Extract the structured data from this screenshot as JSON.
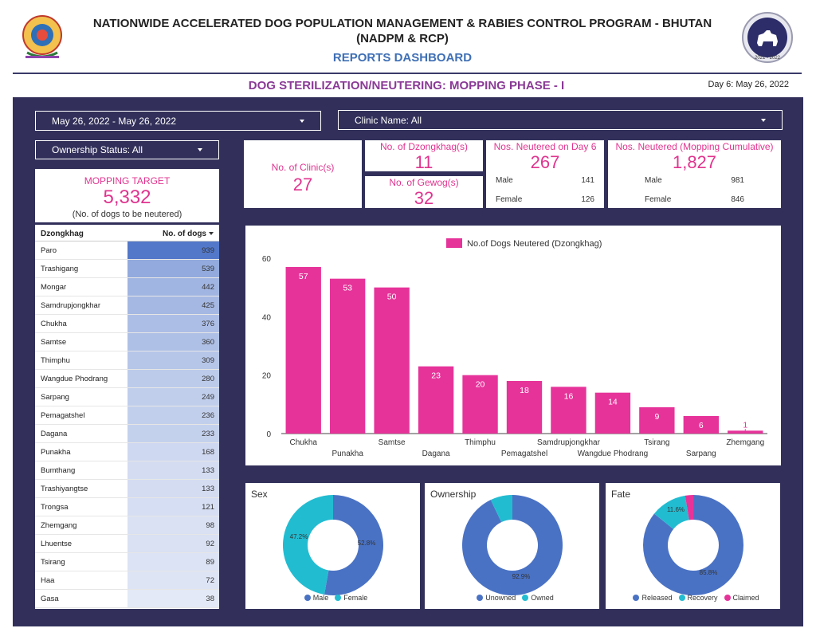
{
  "header": {
    "title_line1": "NATIONWIDE ACCELERATED DOG POPULATION MANAGEMENT & RABIES CONTROL PROGRAM - BHUTAN",
    "title_line2": "(NADPM & RCP)",
    "subtitle": "REPORTS DASHBOARD",
    "section_title": "DOG STERILIZATION/NEUTERING: MOPPING PHASE - I",
    "day_label": "Day 6: May 26, 2022",
    "left_logo": "emblem-of-bhutan-logo",
    "right_logo": "nadpm-dog-logo",
    "right_logo_years": "2021 - 2022"
  },
  "filters": {
    "date_range": "May 26, 2022 - May 26, 2022",
    "clinic": "Clinic Name: All",
    "ownership": "Ownership Status: All"
  },
  "target": {
    "label": "MOPPING TARGET",
    "value": "5,332",
    "note": "(No. of dogs to be neutered)"
  },
  "kpis": {
    "clinics": {
      "label": "No. of Clinic(s)",
      "value": "27"
    },
    "dzongkhags": {
      "label": "No. of Dzongkhag(s)",
      "value": "11"
    },
    "gewogs": {
      "label": "No. of Gewog(s)",
      "value": "32"
    },
    "day6": {
      "label": "Nos. Neutered on Day 6",
      "value": "267",
      "male_label": "Male",
      "male_value": "141",
      "female_label": "Female",
      "female_value": "126"
    },
    "cumulative": {
      "label": "Nos. Neutered (Mopping Cumulative)",
      "value": "1,827",
      "male_label": "Male",
      "male_value": "981",
      "female_label": "Female",
      "female_value": "846"
    }
  },
  "table": {
    "col1": "Dzongkhag",
    "col2": "No. of dogs",
    "max": 939,
    "rows": [
      {
        "name": "Paro",
        "value": 939
      },
      {
        "name": "Trashigang",
        "value": 539
      },
      {
        "name": "Mongar",
        "value": 442
      },
      {
        "name": "Samdrupjongkhar",
        "value": 425
      },
      {
        "name": "Chukha",
        "value": 376
      },
      {
        "name": "Samtse",
        "value": 360
      },
      {
        "name": "Thimphu",
        "value": 309
      },
      {
        "name": "Wangdue Phodrang",
        "value": 280
      },
      {
        "name": "Sarpang",
        "value": 249
      },
      {
        "name": "Pemagatshel",
        "value": 236
      },
      {
        "name": "Dagana",
        "value": 233
      },
      {
        "name": "Punakha",
        "value": 168
      },
      {
        "name": "Bumthang",
        "value": 133
      },
      {
        "name": "Trashiyangtse",
        "value": 133
      },
      {
        "name": "Trongsa",
        "value": 121
      },
      {
        "name": "Zhemgang",
        "value": 98
      },
      {
        "name": "Lhuentse",
        "value": 92
      },
      {
        "name": "Tsirang",
        "value": 89
      },
      {
        "name": "Haa",
        "value": 72
      },
      {
        "name": "Gasa",
        "value": 38
      }
    ]
  },
  "chart_data": [
    {
      "type": "bar",
      "title": "",
      "legend": "No.of Dogs Neutered (Dzongkhag)",
      "legend_position": "top",
      "categories": [
        "Chukha",
        "Punakha",
        "Samtse",
        "Dagana",
        "Thimphu",
        "Pemagatshel",
        "Samdrupjongkhar",
        "Wangdue Phodrang",
        "Tsirang",
        "Sarpang",
        "Zhemgang"
      ],
      "values": [
        57,
        53,
        50,
        23,
        20,
        18,
        16,
        14,
        9,
        6,
        1
      ],
      "yticks": [
        0,
        20,
        40,
        60
      ],
      "ylim": [
        0,
        60
      ],
      "color": "#e6339a",
      "grid": false
    },
    {
      "type": "pie",
      "title": "Sex",
      "labels": [
        "Male",
        "Female"
      ],
      "values": [
        52.8,
        47.2
      ],
      "value_labels": [
        "52.8%",
        "47.2%"
      ],
      "colors": [
        "#4a72c4",
        "#22bcd1"
      ]
    },
    {
      "type": "pie",
      "title": "Ownership",
      "labels": [
        "Unowned",
        "Owned"
      ],
      "values": [
        92.9,
        7.1
      ],
      "value_labels": [
        "92.9%",
        ""
      ],
      "colors": [
        "#4a72c4",
        "#22bcd1"
      ]
    },
    {
      "type": "pie",
      "title": "Fate",
      "labels": [
        "Released",
        "Recovery",
        "Claimed"
      ],
      "values": [
        85.8,
        11.6,
        2.6
      ],
      "value_labels": [
        "85.8%",
        "11.6%",
        ""
      ],
      "colors": [
        "#4a72c4",
        "#22bcd1",
        "#e6339a"
      ]
    }
  ]
}
